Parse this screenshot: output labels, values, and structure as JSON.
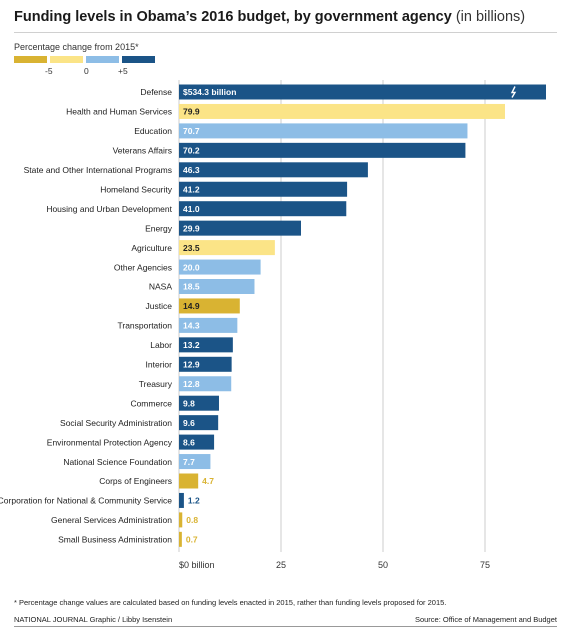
{
  "header": {
    "title": "Funding levels in Obama’s 2016 budget, by government agency",
    "subtitle": "(in billions)"
  },
  "legend": {
    "title": "Percentage change from 2015*",
    "ticks": [
      "-5",
      "0",
      "+5"
    ],
    "colors": [
      "#d9b332",
      "#fbe487",
      "#8dbde6",
      "#1b5487"
    ]
  },
  "colors": {
    "up_large": "#1b5487",
    "up_small": "#8dbde6",
    "down_small": "#fbe487",
    "down_large": "#d9b332",
    "gridline": "#cccccc"
  },
  "chart_data": {
    "type": "bar",
    "orientation": "horizontal",
    "xlim": [
      0,
      90
    ],
    "x_ticks": [
      "$0 billion",
      "25",
      "50",
      "75"
    ],
    "x_tick_values": [
      0,
      25,
      50,
      75
    ],
    "grid": true,
    "axis_break_on": "Defense",
    "categories": [
      "Defense",
      "Health and Human Services",
      "Education",
      "Veterans Affairs",
      "State and Other International Programs",
      "Homeland Security",
      "Housing and Urban Development",
      "Energy",
      "Agriculture",
      "Other Agencies",
      "NASA",
      "Justice",
      "Transportation",
      "Labor",
      "Interior",
      "Treasury",
      "Commerce",
      "Social Security Administration",
      "Environmental Protection Agency",
      "National Science Foundation",
      "Corps of Engineers",
      "Corporation for National & Community Service",
      "General Services Administration",
      "Small  Business Administration"
    ],
    "values": [
      534.3,
      79.9,
      70.7,
      70.2,
      46.3,
      41.2,
      41.0,
      29.9,
      23.5,
      20.0,
      18.5,
      14.9,
      14.3,
      13.2,
      12.9,
      12.8,
      9.8,
      9.6,
      8.6,
      7.7,
      4.7,
      1.2,
      0.8,
      0.7
    ],
    "value_labels": [
      "$534.3 billion",
      "79.9",
      "70.7",
      "70.2",
      "46.3",
      "41.2",
      "41.0",
      "29.9",
      "23.5",
      "20.0",
      "18.5",
      "14.9",
      "14.3",
      "13.2",
      "12.9",
      "12.8",
      "9.8",
      "9.6",
      "8.6",
      "7.7",
      "4.7",
      "1.2",
      "0.8",
      "0.7"
    ],
    "change_class": [
      "up_large",
      "down_small",
      "up_small",
      "up_large",
      "up_large",
      "up_large",
      "up_large",
      "up_large",
      "down_small",
      "up_small",
      "up_small",
      "down_large",
      "up_small",
      "up_large",
      "up_large",
      "up_small",
      "up_large",
      "up_large",
      "up_large",
      "up_small",
      "down_large",
      "up_large",
      "down_large",
      "down_large"
    ]
  },
  "footer": {
    "footnote": "* Percentage change values are calculated based on funding levels enacted in 2015, rather than funding levels proposed for 2015.",
    "credit": "NATIONAL JOURNAL Graphic / Libby Isenstein",
    "source": "Source: Office of Management and Budget"
  }
}
